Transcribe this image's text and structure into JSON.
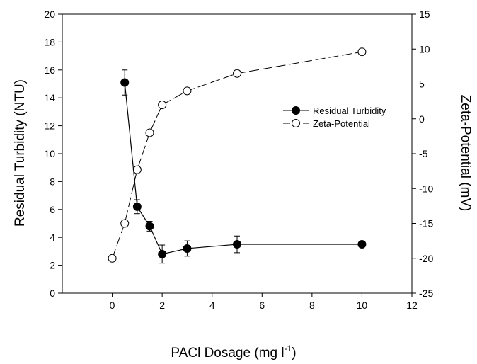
{
  "chart_data": {
    "type": "line",
    "xlabel": "PACl Dosage (mg l",
    "xlabel_sup": "-1",
    "xlabel_close": ")",
    "ylabel_left": "Residual Turbidity (NTU)",
    "ylabel_right": "Zeta-Potential (mV)",
    "xlim": [
      -2,
      12
    ],
    "ylim_left": [
      0,
      20
    ],
    "ylim_right": [
      -25,
      15
    ],
    "x_ticks": [
      "0",
      "2",
      "4",
      "6",
      "8",
      "10",
      "12"
    ],
    "y_left_ticks": [
      "0",
      "2",
      "4",
      "6",
      "8",
      "10",
      "12",
      "14",
      "16",
      "18",
      "20"
    ],
    "y_right_ticks": [
      "-25",
      "-20",
      "-15",
      "-10",
      "-5",
      "0",
      "5",
      "10",
      "15"
    ],
    "legend_position": "upper-right",
    "series": [
      {
        "name": "Residual Turbidity",
        "axis": "left",
        "marker": "filled-circle",
        "line": "solid",
        "x": [
          0.5,
          1,
          1.5,
          2,
          3,
          5,
          10
        ],
        "y": [
          15.1,
          6.2,
          4.8,
          2.8,
          3.2,
          3.5,
          3.5
        ],
        "err": [
          0.9,
          0.5,
          0.35,
          0.65,
          0.55,
          0.6,
          0
        ]
      },
      {
        "name": "Zeta-Potential",
        "axis": "right",
        "marker": "open-circle",
        "line": "dashed",
        "x": [
          0,
          0.5,
          1,
          1.5,
          2,
          3,
          5,
          10
        ],
        "y": [
          -20,
          -15,
          -7.3,
          -2,
          2,
          4,
          6.5,
          9.6
        ]
      }
    ]
  }
}
